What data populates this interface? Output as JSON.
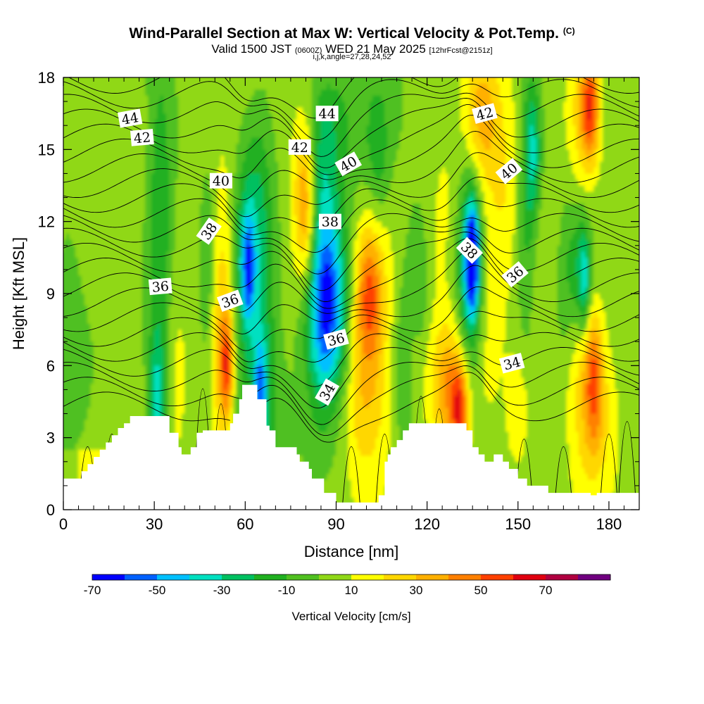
{
  "header": {
    "title": "Wind-Parallel Section at Max W: Vertical Velocity & Pot.Temp.",
    "copyright": "(C)",
    "valid_prefix": "Valid 1500 JST",
    "valid_utc": "(0600Z)",
    "valid_date": "WED 21 May 2025",
    "forecast": "[12hrFcst@2151z]",
    "grid_info": "i,j,k,angle=27,28,24,52"
  },
  "chart_data": {
    "type": "heatmap",
    "xlabel": "Distance [nm]",
    "ylabel": "Height [Kft MSL]",
    "xlim": [
      0,
      190
    ],
    "ylim": [
      0,
      18
    ],
    "x_ticks": [
      0,
      30,
      60,
      90,
      120,
      150,
      180
    ],
    "y_ticks": [
      0,
      3,
      6,
      9,
      12,
      15,
      18
    ],
    "colorbar": {
      "label": "Vertical Velocity [cm/s]",
      "bounds": [
        -70,
        -60,
        -50,
        -40,
        -30,
        -20,
        -10,
        0,
        10,
        20,
        30,
        40,
        50,
        60,
        70,
        80
      ],
      "tick_labels": [
        "-70",
        "-50",
        "-30",
        "-10",
        "10",
        "30",
        "50",
        "70"
      ],
      "colors": [
        "#0000ff",
        "#0060ff",
        "#00c0ff",
        "#00e0c0",
        "#00c060",
        "#20b020",
        "#50c020",
        "#90d818",
        "#ffff00",
        "#ffd700",
        "#ffb000",
        "#ff8000",
        "#ff4000",
        "#e00010",
        "#b00040",
        "#700080"
      ]
    },
    "terrain": [
      [
        0,
        1.3
      ],
      [
        6,
        1.3
      ],
      [
        6,
        1.6
      ],
      [
        8,
        1.6
      ],
      [
        8,
        1.9
      ],
      [
        10,
        1.9
      ],
      [
        10,
        2.2
      ],
      [
        12,
        2.2
      ],
      [
        12,
        2.5
      ],
      [
        14,
        2.5
      ],
      [
        14,
        2.8
      ],
      [
        16,
        2.8
      ],
      [
        16,
        3.1
      ],
      [
        18,
        3.1
      ],
      [
        18,
        3.4
      ],
      [
        20,
        3.4
      ],
      [
        20,
        3.6
      ],
      [
        22,
        3.6
      ],
      [
        22,
        3.9
      ],
      [
        35,
        3.9
      ],
      [
        35,
        3.2
      ],
      [
        38,
        3.2
      ],
      [
        38,
        2.6
      ],
      [
        39,
        2.6
      ],
      [
        39,
        2.3
      ],
      [
        42,
        2.3
      ],
      [
        42,
        2.6
      ],
      [
        44,
        2.6
      ],
      [
        44,
        3.2
      ],
      [
        46,
        3.2
      ],
      [
        46,
        3.3
      ],
      [
        55,
        3.3
      ],
      [
        55,
        3.6
      ],
      [
        56,
        3.6
      ],
      [
        56,
        4.0
      ],
      [
        58,
        4.0
      ],
      [
        58,
        4.6
      ],
      [
        59,
        4.6
      ],
      [
        59,
        5.2
      ],
      [
        64,
        5.2
      ],
      [
        64,
        4.6
      ],
      [
        67,
        4.6
      ],
      [
        67,
        3.5
      ],
      [
        68,
        3.5
      ],
      [
        68,
        3.3
      ],
      [
        70,
        3.3
      ],
      [
        70,
        2.6
      ],
      [
        77,
        2.6
      ],
      [
        77,
        2.3
      ],
      [
        78,
        2.3
      ],
      [
        78,
        2.0
      ],
      [
        81,
        2.0
      ],
      [
        81,
        1.7
      ],
      [
        82,
        1.7
      ],
      [
        82,
        1.3
      ],
      [
        86,
        1.3
      ],
      [
        86,
        0.7
      ],
      [
        90,
        0.7
      ],
      [
        90,
        0.3
      ],
      [
        104,
        0.3
      ],
      [
        104,
        0.6
      ],
      [
        106,
        0.6
      ],
      [
        106,
        2.0
      ],
      [
        107,
        2.0
      ],
      [
        107,
        2.3
      ],
      [
        108,
        2.3
      ],
      [
        108,
        2.6
      ],
      [
        110,
        2.6
      ],
      [
        110,
        2.9
      ],
      [
        112,
        2.9
      ],
      [
        112,
        3.3
      ],
      [
        114,
        3.3
      ],
      [
        114,
        3.6
      ],
      [
        133,
        3.6
      ],
      [
        133,
        3.3
      ],
      [
        135,
        3.3
      ],
      [
        135,
        2.6
      ],
      [
        137,
        2.6
      ],
      [
        137,
        2.3
      ],
      [
        139,
        2.3
      ],
      [
        139,
        2.0
      ],
      [
        142,
        2.0
      ],
      [
        142,
        2.3
      ],
      [
        145,
        2.3
      ],
      [
        145,
        2.0
      ],
      [
        147,
        2.0
      ],
      [
        147,
        1.7
      ],
      [
        150,
        1.7
      ],
      [
        150,
        1.3
      ],
      [
        153,
        1.3
      ],
      [
        153,
        1.0
      ],
      [
        160,
        1.0
      ],
      [
        160,
        0.7
      ],
      [
        174,
        0.7
      ],
      [
        174,
        0.6
      ],
      [
        176,
        0.6
      ],
      [
        176,
        0.7
      ],
      [
        190,
        0.7
      ]
    ],
    "contour_labels": [
      {
        "text": "44",
        "x": 22,
        "y": 16.3,
        "angle": -10
      },
      {
        "text": "44",
        "x": 87,
        "y": 16.5,
        "angle": 0
      },
      {
        "text": "42",
        "x": 26,
        "y": 15.5,
        "angle": -5
      },
      {
        "text": "42",
        "x": 78,
        "y": 15.1,
        "angle": 0
      },
      {
        "text": "42",
        "x": 139,
        "y": 16.5,
        "angle": -15
      },
      {
        "text": "40",
        "x": 52,
        "y": 13.7,
        "angle": 0
      },
      {
        "text": "40",
        "x": 94,
        "y": 14.4,
        "angle": -30
      },
      {
        "text": "40",
        "x": 147,
        "y": 14.1,
        "angle": -40
      },
      {
        "text": "38",
        "x": 48,
        "y": 11.6,
        "angle": -55
      },
      {
        "text": "38",
        "x": 88,
        "y": 12.0,
        "angle": 0
      },
      {
        "text": "38",
        "x": 134,
        "y": 10.8,
        "angle": 45
      },
      {
        "text": "36",
        "x": 32,
        "y": 9.3,
        "angle": -5
      },
      {
        "text": "36",
        "x": 55,
        "y": 8.7,
        "angle": -20
      },
      {
        "text": "36",
        "x": 90,
        "y": 7.1,
        "angle": -15
      },
      {
        "text": "36",
        "x": 149,
        "y": 9.8,
        "angle": -40
      },
      {
        "text": "34",
        "x": 87,
        "y": 4.9,
        "angle": -60
      },
      {
        "text": "34",
        "x": 148,
        "y": 6.1,
        "angle": -15
      }
    ]
  }
}
